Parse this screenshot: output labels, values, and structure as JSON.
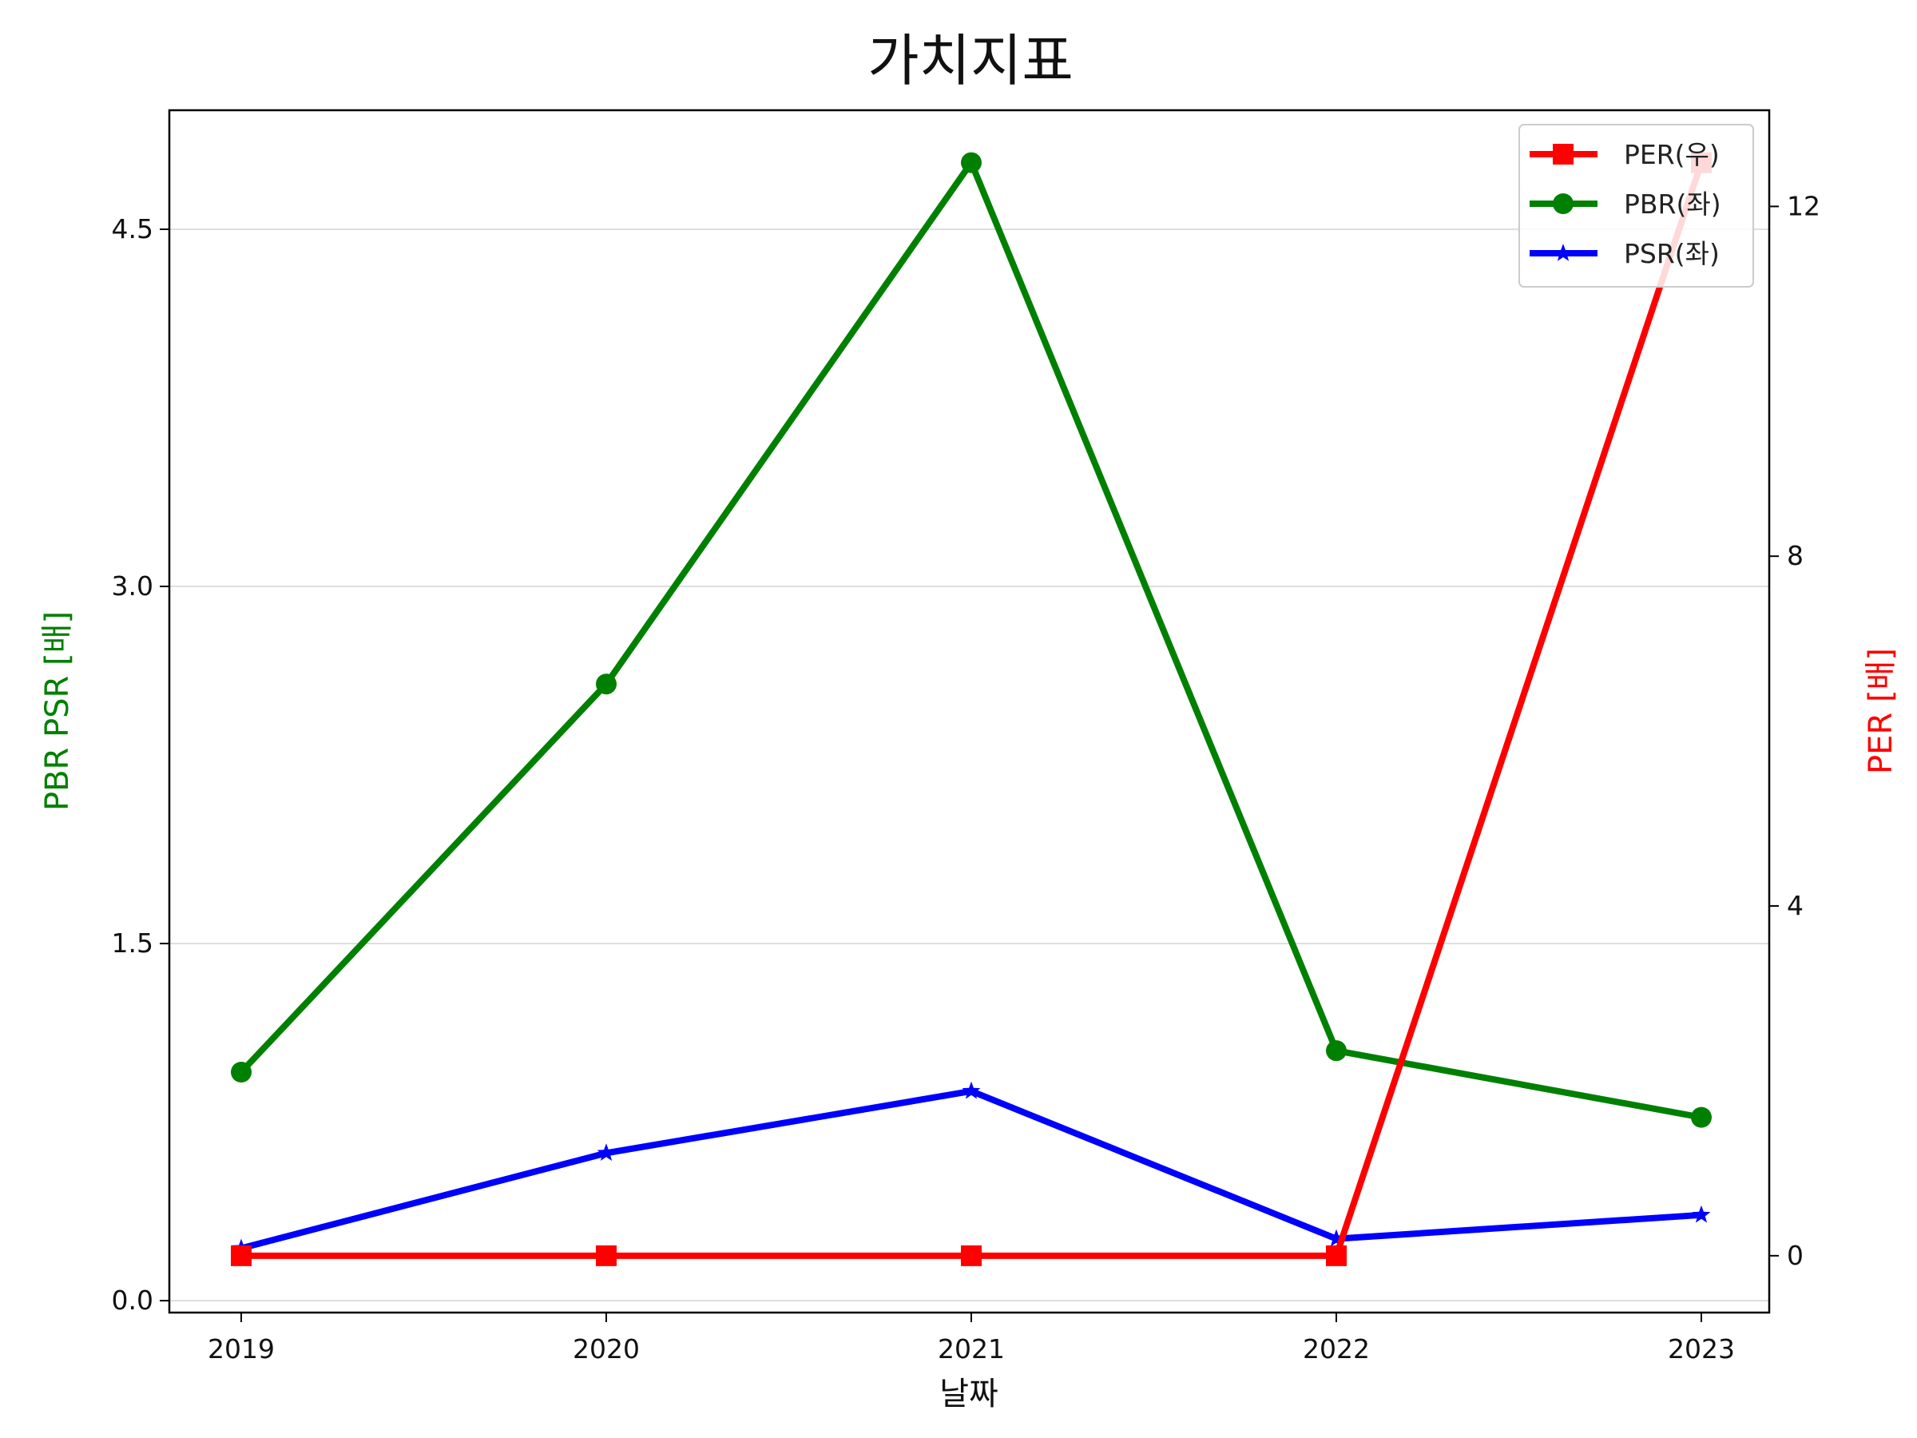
{
  "chart_data": {
    "type": "line",
    "title": "가치지표",
    "x": [
      "2019",
      "2020",
      "2021",
      "2022",
      "2023"
    ],
    "xlabel": "날짜",
    "ylabel_left": "PBR PSR [배]",
    "ylabel_right": "PER [배]",
    "ylim_left": [
      -0.05,
      5.0
    ],
    "ylim_right": [
      -0.65,
      13.1
    ],
    "yticks_left": [
      "0.0",
      "1.5",
      "3.0",
      "4.5"
    ],
    "yticks_right": [
      "0",
      "4",
      "8",
      "12"
    ],
    "grid": "horizontal, left axis",
    "legend_position": "top-right",
    "series": [
      {
        "name": "PER(우)",
        "axis": "right",
        "color": "#ff0000",
        "marker": "square",
        "values": [
          0,
          0,
          0,
          0,
          12.5
        ]
      },
      {
        "name": "PBR(좌)",
        "axis": "left",
        "color": "#008000",
        "marker": "circle",
        "values": [
          0.96,
          2.59,
          4.78,
          1.05,
          0.77
        ]
      },
      {
        "name": "PSR(좌)",
        "axis": "left",
        "color": "#0000ff",
        "marker": "star",
        "values": [
          0.22,
          0.62,
          0.88,
          0.26,
          0.36
        ]
      }
    ],
    "colors": {
      "left_axis_label": "#008000",
      "right_axis_label": "#ff0000",
      "grid": "#d3d3d3"
    }
  }
}
